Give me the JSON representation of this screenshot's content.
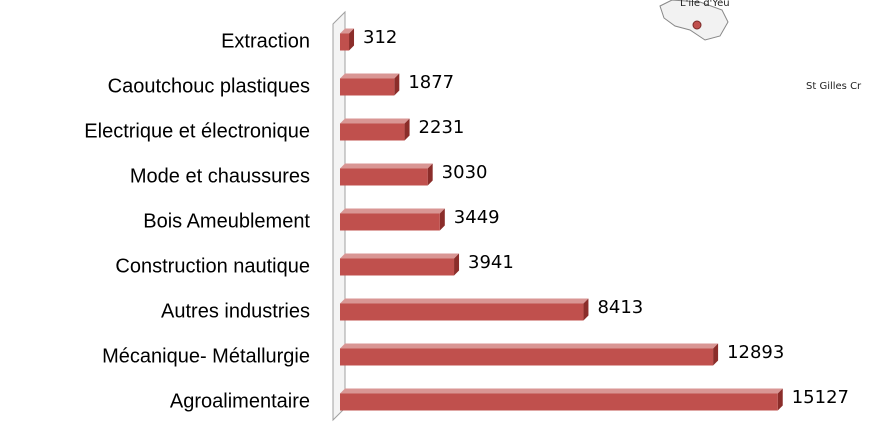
{
  "chart_data": {
    "type": "bar",
    "orientation": "horizontal",
    "categories": [
      "Extraction",
      "Caoutchouc plastiques",
      "Electrique et électronique",
      "Mode et chaussures",
      "Bois Ameublement",
      "Construction nautique",
      "Autres industries",
      "Mécanique- Métallurgie",
      "Agroalimentaire"
    ],
    "values": [
      312,
      1877,
      2231,
      3030,
      3449,
      3941,
      8413,
      12893,
      15127
    ],
    "color": "#c0504d",
    "xlim": [
      0,
      16000
    ],
    "annotations": [
      "L'île d'Yeu",
      "St Gilles Cr"
    ]
  }
}
